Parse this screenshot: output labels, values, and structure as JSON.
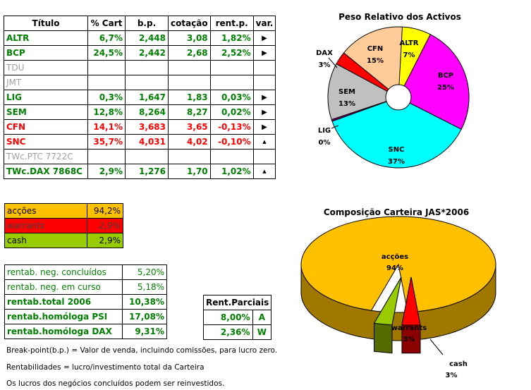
{
  "portfolio": {
    "headers": [
      "Título",
      "% Cart",
      "b.p.",
      "cotação",
      "rent.p.",
      "var."
    ],
    "rows": [
      {
        "name": "ALTR",
        "pct": "6,7%",
        "bp": "2,448",
        "price": "3,08",
        "rent": "1,82%",
        "var": "right",
        "color": "green"
      },
      {
        "name": "BCP",
        "pct": "24,5%",
        "bp": "2,442",
        "price": "2,68",
        "rent": "2,52%",
        "var": "right",
        "color": "green"
      },
      {
        "name": "TDU",
        "pct": "",
        "bp": "",
        "price": "",
        "rent": "",
        "var": "",
        "color": "gray"
      },
      {
        "name": "JMT",
        "pct": "",
        "bp": "",
        "price": "",
        "rent": "",
        "var": "",
        "color": "gray"
      },
      {
        "name": "LIG",
        "pct": "0,3%",
        "bp": "1,647",
        "price": "1,83",
        "rent": "0,03%",
        "var": "right",
        "color": "green"
      },
      {
        "name": "SEM",
        "pct": "12,8%",
        "bp": "8,264",
        "price": "8,27",
        "rent": "0,02%",
        "var": "right",
        "color": "green"
      },
      {
        "name": "CFN",
        "pct": "14,1%",
        "bp": "3,683",
        "price": "3,65",
        "rent": "-0,13%",
        "var": "right",
        "color": "red"
      },
      {
        "name": "SNC",
        "pct": "35,7%",
        "bp": "4,031",
        "price": "4,02",
        "rent": "-0,10%",
        "var": "up",
        "color": "red"
      },
      {
        "name": "TWc.PTC 7722C",
        "pct": "",
        "bp": "",
        "price": "",
        "rent": "",
        "var": "",
        "color": "gray"
      },
      {
        "name": "TWc.DAX 7868C",
        "pct": "2,9%",
        "bp": "1,276",
        "price": "1,70",
        "rent": "1,02%",
        "var": "up",
        "color": "green"
      }
    ]
  },
  "allocation": [
    {
      "label": "acções",
      "value": "94,2%",
      "bg": "#ffc000"
    },
    {
      "label": "warrants",
      "value": "2,9%",
      "bg": "#ff0000"
    },
    {
      "label": "cash",
      "value": "2,9%",
      "bg": "#99cc00"
    }
  ],
  "returns": [
    {
      "label": "rentab. neg. concluídos",
      "value": "5,20%"
    },
    {
      "label": "rentab. neg. em curso",
      "value": "5,18%"
    },
    {
      "label": "rentab.total 2006",
      "value": "10,38%"
    },
    {
      "label": "rentab.homóloga PSI",
      "value": "17,08%"
    },
    {
      "label": "rentab.homóloga DAX",
      "value": "9,31%"
    }
  ],
  "partial": {
    "title": "Rent.Parciais",
    "rows": [
      {
        "value": "8,00%",
        "tag": "A"
      },
      {
        "value": "2,36%",
        "tag": "W"
      }
    ]
  },
  "notes": [
    "Break-point(b.p.) = Valor de venda, incluindo comissões, para lucro zero.",
    "Rentabilidades = lucro/investimento total da Carteira",
    "Os lucros dos negócios concluídos podem ser reinvestidos."
  ],
  "chart_data": [
    {
      "type": "pie",
      "title": "Peso Relativo dos Activos",
      "categories": [
        "ALTR",
        "BCP",
        "SNC",
        "LIG",
        "SEM",
        "DAX",
        "CFN"
      ],
      "values": [
        7,
        25,
        37,
        0,
        13,
        3,
        15
      ],
      "labels": [
        "7%",
        "25%",
        "37%",
        "0%",
        "13%",
        "3%",
        "15%"
      ],
      "colors": [
        "#ffff00",
        "#ff00ff",
        "#00ffff",
        "#800080",
        "#c0c0c0",
        "#ff0000",
        "#ffcc99"
      ]
    },
    {
      "type": "pie",
      "title": "Composição Carteira JAS*2006",
      "categories": [
        "acções",
        "warrants",
        "cash"
      ],
      "values": [
        94,
        3,
        3
      ],
      "labels": [
        "94%",
        "3%",
        "3%"
      ],
      "colors": [
        "#ffc000",
        "#ff0000",
        "#99cc00"
      ]
    }
  ]
}
